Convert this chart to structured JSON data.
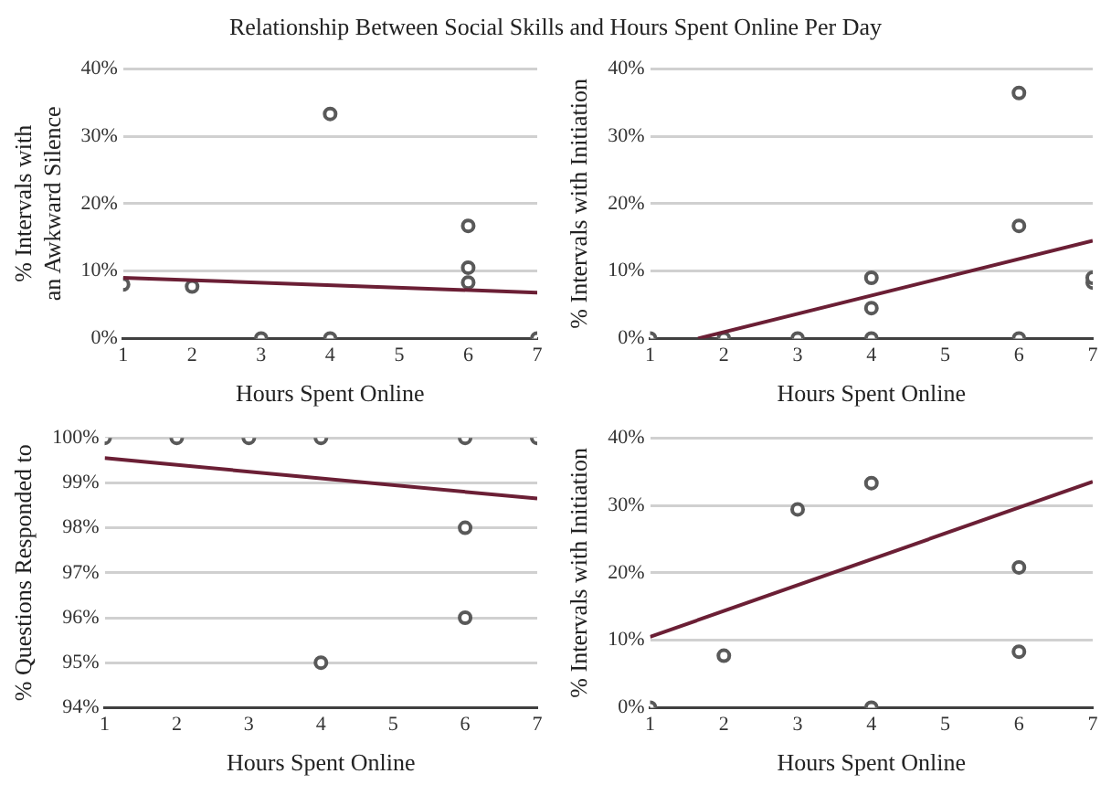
{
  "chart_data": [
    {
      "type": "scatter",
      "title": "Relationship Between Social Skills and Hours Spent Online Per Day",
      "xlabel": "Hours Spent Online",
      "ylabel": "% Intervals with an Awkward Silence",
      "xlim": [
        1,
        7
      ],
      "xticks": [
        1,
        2,
        3,
        4,
        5,
        6,
        7
      ],
      "ylim": [
        0,
        40
      ],
      "yticks": [
        {
          "value": 0,
          "label": "0%"
        },
        {
          "value": 10,
          "label": "10%"
        },
        {
          "value": 20,
          "label": "20%"
        },
        {
          "value": 30,
          "label": "30%"
        },
        {
          "value": 40,
          "label": "40%"
        }
      ],
      "grid": "y",
      "legend": false,
      "series": [
        {
          "marker": "circle",
          "color": "#595959",
          "x": [
            1,
            2,
            3,
            4,
            4,
            6,
            6,
            6,
            7
          ],
          "values": [
            8,
            7.7,
            0,
            0,
            33.3,
            16.7,
            10.5,
            8.3,
            0
          ]
        },
        {
          "type": "line",
          "color": "#6b1f35",
          "x": [
            1,
            7
          ],
          "values": [
            9,
            6.8
          ]
        }
      ]
    },
    {
      "type": "scatter",
      "xlabel": "Hours Spent Online",
      "ylabel": "% Intervals with Initiation",
      "xlim": [
        1,
        7
      ],
      "xticks": [
        1,
        2,
        3,
        4,
        5,
        6,
        7
      ],
      "ylim": [
        0,
        40
      ],
      "yticks": [
        {
          "value": 0,
          "label": "0%"
        },
        {
          "value": 10,
          "label": "10%"
        },
        {
          "value": 20,
          "label": "20%"
        },
        {
          "value": 30,
          "label": "30%"
        },
        {
          "value": 40,
          "label": "40%"
        }
      ],
      "grid": "y",
      "legend": false,
      "series": [
        {
          "marker": "circle",
          "color": "#595959",
          "x": [
            1,
            2,
            3,
            4,
            4,
            4,
            6,
            6,
            6,
            7,
            7
          ],
          "values": [
            0,
            0,
            0,
            0,
            4.5,
            9,
            0,
            16.7,
            36.4,
            8.3,
            9
          ]
        },
        {
          "type": "line",
          "color": "#6b1f35",
          "x": [
            1.65,
            7
          ],
          "values": [
            0,
            14.5
          ]
        }
      ]
    },
    {
      "type": "scatter",
      "xlabel": "Hours Spent Online",
      "ylabel": "% Questions Responded to",
      "xlim": [
        1,
        7
      ],
      "xticks": [
        1,
        2,
        3,
        4,
        5,
        6,
        7
      ],
      "ylim": [
        94,
        100
      ],
      "yticks": [
        {
          "value": 94,
          "label": "94%"
        },
        {
          "value": 95,
          "label": "95%"
        },
        {
          "value": 96,
          "label": "96%"
        },
        {
          "value": 97,
          "label": "97%"
        },
        {
          "value": 98,
          "label": "98%"
        },
        {
          "value": 99,
          "label": "99%"
        },
        {
          "value": 100,
          "label": "100%"
        }
      ],
      "grid": "y",
      "legend": false,
      "series": [
        {
          "marker": "circle",
          "color": "#595959",
          "x": [
            1,
            2,
            3,
            4,
            6,
            7,
            6,
            6,
            4
          ],
          "values": [
            100,
            100,
            100,
            100,
            100,
            100,
            98,
            96,
            95
          ]
        },
        {
          "type": "line",
          "color": "#6b1f35",
          "x": [
            1,
            7
          ],
          "values": [
            99.55,
            98.65
          ]
        }
      ]
    },
    {
      "type": "scatter",
      "xlabel": "Hours Spent Online",
      "ylabel": "% Intervals with Initiation",
      "xlim": [
        1,
        7
      ],
      "xticks": [
        1,
        2,
        3,
        4,
        5,
        6,
        7
      ],
      "ylim": [
        0,
        40
      ],
      "yticks": [
        {
          "value": 0,
          "label": "0%"
        },
        {
          "value": 10,
          "label": "10%"
        },
        {
          "value": 20,
          "label": "20%"
        },
        {
          "value": 30,
          "label": "30%"
        },
        {
          "value": 40,
          "label": "40%"
        }
      ],
      "grid": "y",
      "legend": false,
      "series": [
        {
          "marker": "circle",
          "color": "#595959",
          "x": [
            1,
            2,
            3,
            4,
            4,
            6,
            6
          ],
          "values": [
            0,
            7.7,
            29.4,
            33.3,
            0,
            20.8,
            8.3
          ]
        },
        {
          "type": "line",
          "color": "#6b1f35",
          "x": [
            1,
            7
          ],
          "values": [
            10.5,
            33.5
          ]
        }
      ]
    }
  ]
}
